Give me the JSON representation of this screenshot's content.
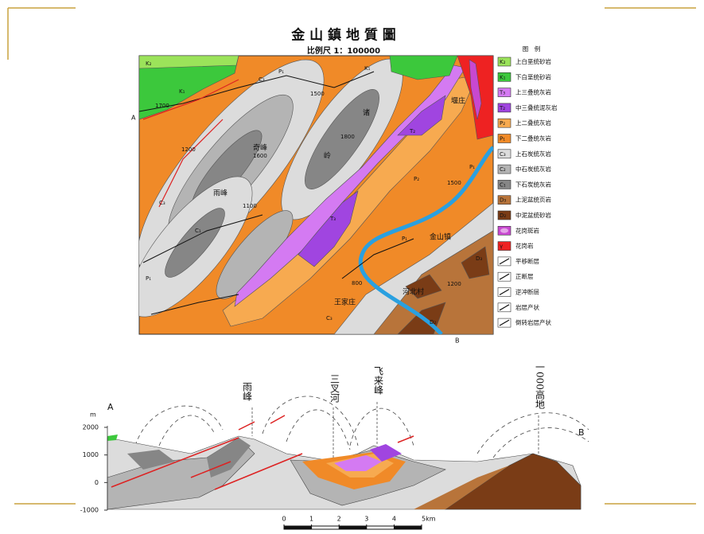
{
  "slide": {
    "title": "金 山 鎮 地 質 圖",
    "scale_text": "比例尺 1：100000"
  },
  "legend": {
    "title": "图　例",
    "items": [
      {
        "code": "K₂",
        "label": "上白垩统砂岩",
        "color": "#9be35a"
      },
      {
        "code": "K₁",
        "label": "下白垩统砂岩",
        "color": "#3cc83c"
      },
      {
        "code": "T₃",
        "label": "上三叠统灰岩",
        "color": "#d47af2"
      },
      {
        "code": "T₂",
        "label": "中三叠统泥灰岩",
        "color": "#a045e0"
      },
      {
        "code": "P₂",
        "label": "上二叠统灰岩",
        "color": "#f7aa50"
      },
      {
        "code": "P₁",
        "label": "下二叠统灰岩",
        "color": "#f08a28"
      },
      {
        "code": "C₃",
        "label": "上石炭统灰岩",
        "color": "#dcdcdc"
      },
      {
        "code": "C₂",
        "label": "中石炭统灰岩",
        "color": "#b4b4b4"
      },
      {
        "code": "C₁",
        "label": "下石炭统灰岩",
        "color": "#868686"
      },
      {
        "code": "D₃",
        "label": "上泥盆统页岩",
        "color": "#b8743a"
      },
      {
        "code": "D₂",
        "label": "中泥盆统砂岩",
        "color": "#7a3c16"
      },
      {
        "label": "花岗斑岩",
        "color": "#c848d0"
      },
      {
        "code": "γ",
        "label": "花岗岩",
        "color": "#ee2222"
      },
      {
        "label": "平移断层"
      },
      {
        "label": "正断层"
      },
      {
        "label": "逆冲断层"
      },
      {
        "label": "岩层产状"
      },
      {
        "label": "倒转岩层产状"
      }
    ]
  },
  "map": {
    "places": [
      "雨峰",
      "奇峰",
      "诸",
      "岭",
      "金山镇",
      "河北村",
      "王家庄",
      "堰庄"
    ],
    "elevations": [
      1700,
      1500,
      1600,
      1800,
      1200,
      1100,
      800,
      1500,
      1200
    ],
    "ends": [
      "A",
      "B"
    ]
  },
  "section": {
    "labels": [
      "雨峰",
      "三叉河",
      "飞来峰",
      "一000高地"
    ],
    "ends": [
      "A",
      "B"
    ],
    "unit": "m",
    "ylim": [
      -1000,
      2000
    ],
    "yticks": [
      2000,
      1000,
      0,
      -1000
    ]
  },
  "scale_bar": {
    "xlim": [
      0,
      5
    ],
    "ticks": [
      0,
      1,
      2,
      3,
      4,
      {
        "value": 5,
        "label": "5km"
      }
    ]
  }
}
